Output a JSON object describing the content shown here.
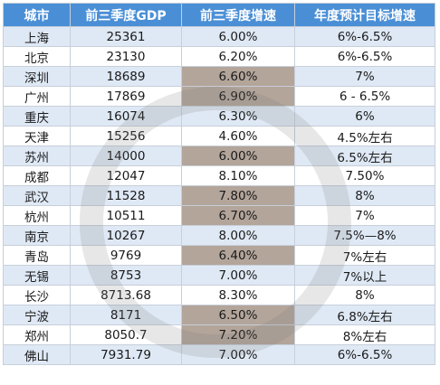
{
  "table": {
    "headers": [
      "城市",
      "前三季度GDP",
      "前三季度增速",
      "年度预计目标增速"
    ],
    "rows": [
      {
        "city": "上海",
        "gdp": "25361",
        "growth": "6.00%",
        "target": "6%-6.5%",
        "highlight": false
      },
      {
        "city": "北京",
        "gdp": "23130",
        "growth": "6.20%",
        "target": "6%-6.5%",
        "highlight": false
      },
      {
        "city": "深圳",
        "gdp": "18689",
        "growth": "6.60%",
        "target": "7%",
        "highlight": true
      },
      {
        "city": "广州",
        "gdp": "17869",
        "growth": "6.90%",
        "target": "6 - 6.5%",
        "highlight": true
      },
      {
        "city": "重庆",
        "gdp": "16074",
        "growth": "6.30%",
        "target": "6%",
        "highlight": false
      },
      {
        "city": "天津",
        "gdp": "15256",
        "growth": "4.60%",
        "target": "4.5%左右",
        "highlight": false
      },
      {
        "city": "苏州",
        "gdp": "14000",
        "growth": "6.00%",
        "target": "6.5%左右",
        "highlight": true
      },
      {
        "city": "成都",
        "gdp": "12047",
        "growth": "8.10%",
        "target": "7.50%",
        "highlight": false
      },
      {
        "city": "武汉",
        "gdp": "11528",
        "growth": "7.80%",
        "target": "8%",
        "highlight": true
      },
      {
        "city": "杭州",
        "gdp": "10511",
        "growth": "6.70%",
        "target": "7%",
        "highlight": true
      },
      {
        "city": "南京",
        "gdp": "10267",
        "growth": "8.00%",
        "target": "7.5%—8%",
        "highlight": false
      },
      {
        "city": "青岛",
        "gdp": "9769",
        "growth": "6.40%",
        "target": "7%左右",
        "highlight": true
      },
      {
        "city": "无锡",
        "gdp": "8753",
        "growth": "7.00%",
        "target": "7%以上",
        "highlight": false
      },
      {
        "city": "长沙",
        "gdp": "8713.68",
        "growth": "8.30%",
        "target": "8%",
        "highlight": false
      },
      {
        "city": "宁波",
        "gdp": "8171",
        "growth": "6.50%",
        "target": "6.8%左右",
        "highlight": true
      },
      {
        "city": "郑州",
        "gdp": "8050.7",
        "growth": "7.20%",
        "target": "8%左右",
        "highlight": true
      },
      {
        "city": "佛山",
        "gdp": "7931.79",
        "growth": "7.00%",
        "target": "6%-6.5%",
        "highlight": false
      }
    ]
  },
  "colors": {
    "header_bg": "#4a8fd6",
    "stripe_bg": "#dfe9f5",
    "highlight_bg": "#b3a59a"
  }
}
